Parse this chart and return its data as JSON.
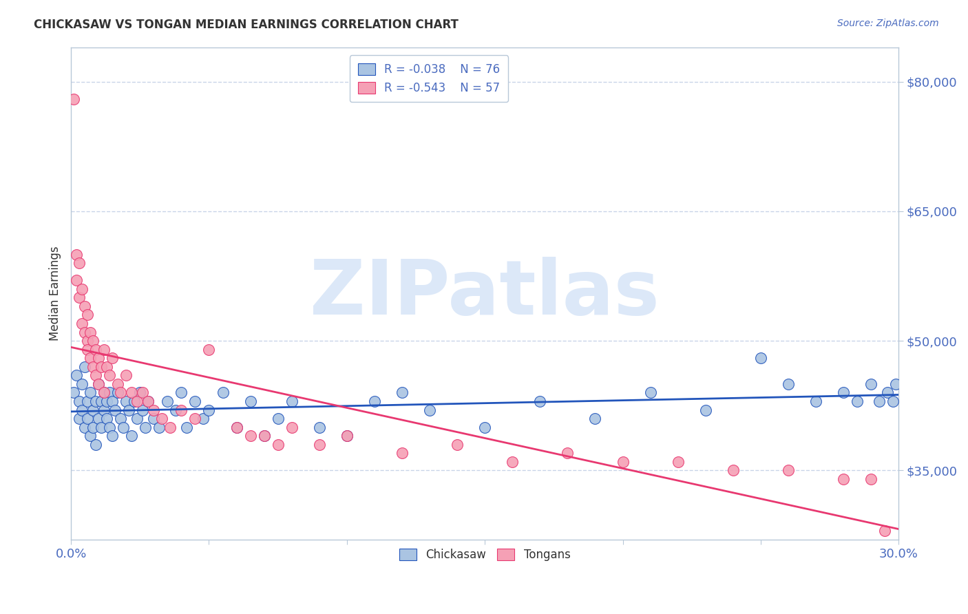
{
  "title": "CHICKASAW VS TONGAN MEDIAN EARNINGS CORRELATION CHART",
  "source": "Source: ZipAtlas.com",
  "ylabel": "Median Earnings",
  "xlim": [
    0.0,
    0.3
  ],
  "ylim": [
    27000,
    84000
  ],
  "yticks": [
    35000,
    50000,
    65000,
    80000
  ],
  "ytick_labels": [
    "$35,000",
    "$50,000",
    "$65,000",
    "$80,000"
  ],
  "xticks": [
    0.0,
    0.05,
    0.1,
    0.15,
    0.2,
    0.25,
    0.3
  ],
  "xtick_labels": [
    "0.0%",
    "",
    "",
    "",
    "",
    "",
    "30.0%"
  ],
  "legend_blue_r": "R = -0.038",
  "legend_blue_n": "N = 76",
  "legend_pink_r": "R = -0.543",
  "legend_pink_n": "N = 57",
  "chickasaw_color": "#aac4e2",
  "tongan_color": "#f5a0b5",
  "line_blue": "#2255bb",
  "line_pink": "#e83870",
  "grid_color": "#c8d4e8",
  "axis_color": "#b8c8d8",
  "text_color": "#4a6bbf",
  "title_color": "#333333",
  "watermark": "ZIPatlas",
  "watermark_color": "#dce8f8",
  "chickasaw_x": [
    0.001,
    0.002,
    0.003,
    0.003,
    0.004,
    0.004,
    0.005,
    0.005,
    0.006,
    0.006,
    0.007,
    0.007,
    0.008,
    0.008,
    0.009,
    0.009,
    0.01,
    0.01,
    0.011,
    0.011,
    0.012,
    0.012,
    0.013,
    0.013,
    0.014,
    0.014,
    0.015,
    0.015,
    0.016,
    0.017,
    0.018,
    0.019,
    0.02,
    0.021,
    0.022,
    0.023,
    0.024,
    0.025,
    0.026,
    0.027,
    0.028,
    0.03,
    0.032,
    0.035,
    0.038,
    0.04,
    0.042,
    0.045,
    0.048,
    0.05,
    0.055,
    0.06,
    0.065,
    0.07,
    0.075,
    0.08,
    0.09,
    0.1,
    0.11,
    0.12,
    0.13,
    0.15,
    0.17,
    0.19,
    0.21,
    0.23,
    0.25,
    0.26,
    0.27,
    0.28,
    0.285,
    0.29,
    0.293,
    0.296,
    0.298,
    0.299
  ],
  "chickasaw_y": [
    44000,
    46000,
    43000,
    41000,
    45000,
    42000,
    40000,
    47000,
    43000,
    41000,
    44000,
    39000,
    42000,
    40000,
    43000,
    38000,
    45000,
    41000,
    43000,
    40000,
    44000,
    42000,
    43000,
    41000,
    44000,
    40000,
    43000,
    39000,
    42000,
    44000,
    41000,
    40000,
    43000,
    42000,
    39000,
    43000,
    41000,
    44000,
    42000,
    40000,
    43000,
    41000,
    40000,
    43000,
    42000,
    44000,
    40000,
    43000,
    41000,
    42000,
    44000,
    40000,
    43000,
    39000,
    41000,
    43000,
    40000,
    39000,
    43000,
    44000,
    42000,
    40000,
    43000,
    41000,
    44000,
    42000,
    48000,
    45000,
    43000,
    44000,
    43000,
    45000,
    43000,
    44000,
    43000,
    45000
  ],
  "tongan_x": [
    0.001,
    0.002,
    0.002,
    0.003,
    0.003,
    0.004,
    0.004,
    0.005,
    0.005,
    0.006,
    0.006,
    0.006,
    0.007,
    0.007,
    0.008,
    0.008,
    0.009,
    0.009,
    0.01,
    0.01,
    0.011,
    0.012,
    0.012,
    0.013,
    0.014,
    0.015,
    0.017,
    0.018,
    0.02,
    0.022,
    0.024,
    0.026,
    0.028,
    0.03,
    0.033,
    0.036,
    0.04,
    0.045,
    0.05,
    0.06,
    0.065,
    0.07,
    0.075,
    0.08,
    0.09,
    0.1,
    0.12,
    0.14,
    0.16,
    0.18,
    0.2,
    0.22,
    0.24,
    0.26,
    0.28,
    0.29,
    0.295
  ],
  "tongan_y": [
    78000,
    60000,
    57000,
    59000,
    55000,
    56000,
    52000,
    54000,
    51000,
    53000,
    50000,
    49000,
    51000,
    48000,
    50000,
    47000,
    49000,
    46000,
    48000,
    45000,
    47000,
    49000,
    44000,
    47000,
    46000,
    48000,
    45000,
    44000,
    46000,
    44000,
    43000,
    44000,
    43000,
    42000,
    41000,
    40000,
    42000,
    41000,
    49000,
    40000,
    39000,
    39000,
    38000,
    40000,
    38000,
    39000,
    37000,
    38000,
    36000,
    37000,
    36000,
    36000,
    35000,
    35000,
    34000,
    34000,
    28000
  ]
}
